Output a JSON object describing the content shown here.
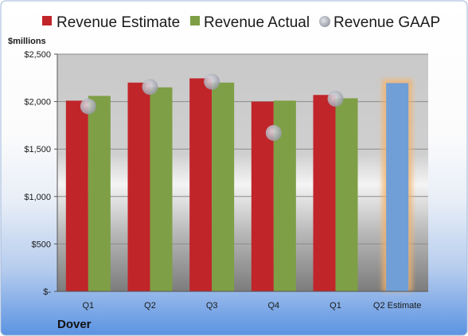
{
  "chart_data": {
    "type": "bar",
    "company": "Dover",
    "unit_label": "$millions",
    "categories": [
      "Q1",
      "Q2",
      "Q3",
      "Q4",
      "Q1",
      "Q2 Estimate"
    ],
    "series": [
      {
        "name": "Revenue Estimate",
        "kind": "bar",
        "color": "#c0252a",
        "values": [
          2010,
          2200,
          2245,
          2000,
          2070,
          null
        ]
      },
      {
        "name": "Revenue Actual",
        "kind": "bar",
        "color": "#7e9f45",
        "values": [
          2060,
          2150,
          2200,
          2010,
          2035,
          null
        ]
      },
      {
        "name": "Revenue GAAP",
        "kind": "marker",
        "color": "#b5b8c4",
        "values": [
          1950,
          2155,
          2210,
          1670,
          2030,
          null
        ]
      }
    ],
    "forward_estimate": {
      "category": "Q2 Estimate",
      "value": 2195,
      "color": "#6f9fd6",
      "glow": "#f5b26b"
    },
    "y_ticks": [
      0,
      500,
      1000,
      1500,
      2000,
      2500
    ],
    "y_tick_labels": [
      "$-",
      "$500",
      "$1,000",
      "$1,500",
      "$2,000",
      "$2,500"
    ],
    "ylim": [
      0,
      2500
    ],
    "grid": true,
    "legend_position": "top"
  }
}
